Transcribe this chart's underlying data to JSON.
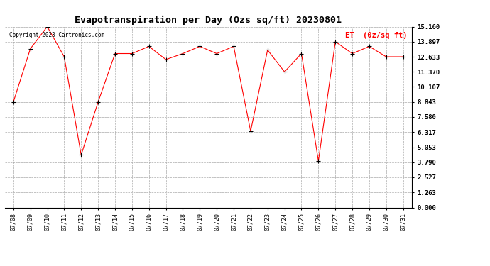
{
  "title": "Evapotranspiration per Day (Ozs sq/ft) 20230801",
  "copyright_text": "Copyright 2023 Cartronics.com",
  "legend_label": "ET  (0z/sq ft)",
  "dates": [
    "07/08",
    "07/09",
    "07/10",
    "07/11",
    "07/12",
    "07/13",
    "07/14",
    "07/15",
    "07/16",
    "07/17",
    "07/18",
    "07/19",
    "07/20",
    "07/21",
    "07/22",
    "07/23",
    "07/24",
    "07/25",
    "07/26",
    "07/27",
    "07/28",
    "07/29",
    "07/30",
    "07/31"
  ],
  "values": [
    8.843,
    13.3,
    15.16,
    12.633,
    4.4,
    8.843,
    12.9,
    12.9,
    13.5,
    12.4,
    12.9,
    13.5,
    12.9,
    13.5,
    6.4,
    13.2,
    11.37,
    12.9,
    3.9,
    13.897,
    12.9,
    13.5,
    12.633,
    12.633
  ],
  "line_color": "red",
  "marker_color": "black",
  "bg_color": "white",
  "grid_color": "#aaaaaa",
  "yticks": [
    0.0,
    1.263,
    2.527,
    3.79,
    5.053,
    6.317,
    7.58,
    8.843,
    10.107,
    11.37,
    12.633,
    13.897,
    15.16
  ],
  "ylim": [
    0,
    15.16
  ],
  "title_fontsize": 9.5,
  "copyright_fontsize": 5.5,
  "legend_fontsize": 7.5,
  "tick_fontsize": 6.0,
  "ytick_fontsize": 6.5
}
